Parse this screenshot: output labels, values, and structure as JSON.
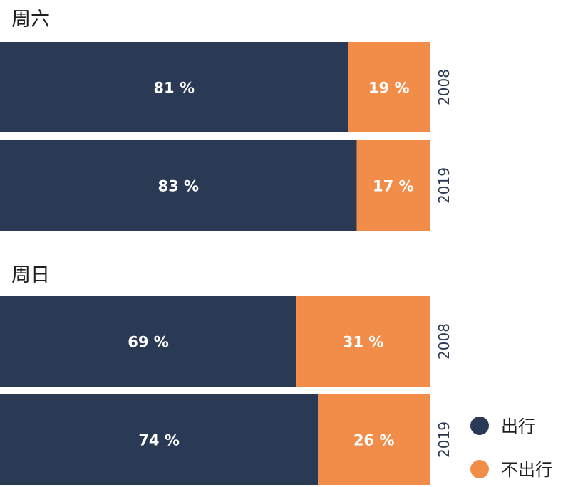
{
  "colors": {
    "go": "#2a3a55",
    "nogo": "#f28d49"
  },
  "chart_data": {
    "type": "bar",
    "stacked": true,
    "orientation": "horizontal",
    "xlim": [
      0,
      100
    ],
    "unit": "%",
    "legend_position": "bottom-right",
    "legend": [
      {
        "name": "出行",
        "color": "#2a3a55"
      },
      {
        "name": "不出行",
        "color": "#f28d49"
      }
    ],
    "panels": [
      {
        "title": "周六",
        "bars": [
          {
            "year": "2008",
            "values": [
              81,
              19
            ],
            "labels": [
              "81 %",
              "19 %"
            ]
          },
          {
            "year": "2019",
            "values": [
              83,
              17
            ],
            "labels": [
              "83 %",
              "17 %"
            ]
          }
        ]
      },
      {
        "title": "周日",
        "bars": [
          {
            "year": "2008",
            "values": [
              69,
              31
            ],
            "labels": [
              "69 %",
              "31 %"
            ]
          },
          {
            "year": "2019",
            "values": [
              74,
              26
            ],
            "labels": [
              "74 %",
              "26 %"
            ]
          }
        ]
      }
    ]
  }
}
